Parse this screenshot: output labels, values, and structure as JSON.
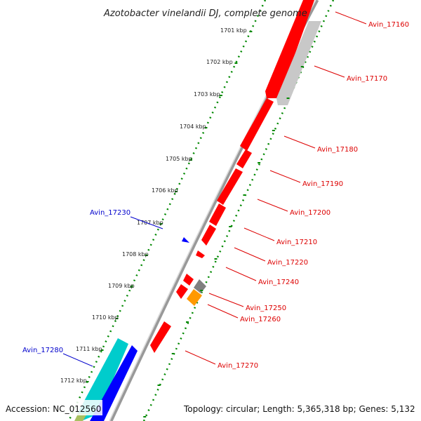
{
  "title": "Azotobacter vinelandii DJ, complete genome",
  "accession": "Accession: NC_012560",
  "topology": "Topology: circular; Length: 5,365,318 bp; Genes: 5,132",
  "ticks": [
    "1701 kbp",
    "1702 kbp",
    "1703 kbp",
    "1704 kbp",
    "1705 kbp",
    "1706 kbp",
    "1707 kbp",
    "1708 kbp",
    "1709 kbp",
    "1710 kbp",
    "1711 kbp",
    "1712 kbp"
  ],
  "genes": [
    {
      "name": "Avin_17160",
      "label_color": "#dd0000",
      "fill": "#ff0000",
      "strand": "reverse"
    },
    {
      "name": "Avin_17170",
      "label_color": "#dd0000",
      "fill": "#c8c8c8",
      "strand": "reverse"
    },
    {
      "name": "Avin_17180",
      "label_color": "#dd0000",
      "fill": "#ff0000",
      "strand": "reverse"
    },
    {
      "name": "Avin_17190",
      "label_color": "#dd0000",
      "fill": "#ff0000",
      "strand": "reverse"
    },
    {
      "name": "Avin_17200",
      "label_color": "#dd0000",
      "fill": "#ff0000",
      "strand": "reverse"
    },
    {
      "name": "Avin_17210",
      "label_color": "#dd0000",
      "fill": "#ff0000",
      "strand": "reverse"
    },
    {
      "name": "Avin_17220",
      "label_color": "#dd0000",
      "fill": "#ff0000",
      "strand": "reverse"
    },
    {
      "name": "Avin_17230",
      "label_color": "#0000cc",
      "fill": "#0000ff",
      "strand": "forward"
    },
    {
      "name": "Avin_17240",
      "label_color": "#dd0000",
      "fill": "#ff0000",
      "strand": "reverse"
    },
    {
      "name": "Avin_17250",
      "label_color": "#dd0000",
      "fill": "#808080",
      "strand": "reverse"
    },
    {
      "name": "Avin_17260",
      "label_color": "#dd0000",
      "fill": "#ff9900",
      "strand": "reverse"
    },
    {
      "name": "Avin_17270",
      "label_color": "#dd0000",
      "fill": "#ff0000",
      "strand": "reverse"
    },
    {
      "name": "Avin_17280",
      "label_color": "#0000cc",
      "fill": "#00cccc",
      "strand": "forward"
    }
  ],
  "colors": {
    "tick_line": "#008800",
    "backbone": "#777777"
  }
}
